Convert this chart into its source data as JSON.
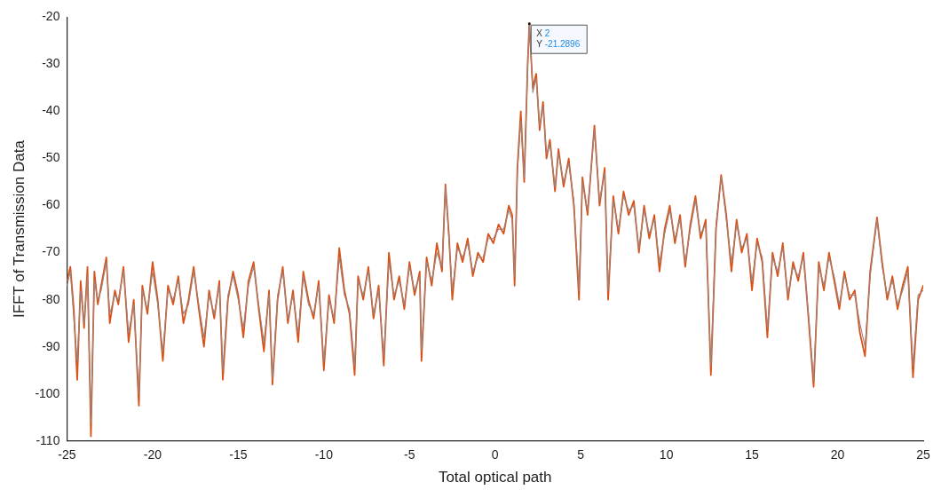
{
  "chart_data": {
    "type": "line",
    "xlabel": "Total optical path",
    "ylabel": "IFFT of Transmission Data",
    "x": [
      -25,
      -24.8,
      -24.6,
      -24.4,
      -24.2,
      -24,
      -23.8,
      -23.6,
      -23.4,
      -23.2,
      -23,
      -22.7,
      -22.5,
      -22.2,
      -22,
      -21.7,
      -21.4,
      -21.1,
      -20.8,
      -20.6,
      -20.3,
      -20,
      -19.7,
      -19.4,
      -19.1,
      -18.8,
      -18.5,
      -18.2,
      -17.9,
      -17.6,
      -17.3,
      -17,
      -16.7,
      -16.4,
      -16.1,
      -15.9,
      -15.6,
      -15.3,
      -15,
      -14.7,
      -14.4,
      -14.1,
      -13.8,
      -13.5,
      -13.2,
      -13,
      -12.7,
      -12.4,
      -12.1,
      -11.8,
      -11.5,
      -11.2,
      -10.9,
      -10.6,
      -10.3,
      -10,
      -9.7,
      -9.4,
      -9.1,
      -8.8,
      -8.5,
      -8.2,
      -8,
      -7.7,
      -7.4,
      -7.1,
      -6.8,
      -6.5,
      -6.2,
      -5.9,
      -5.6,
      -5.3,
      -5,
      -4.7,
      -4.4,
      -4.3,
      -4,
      -3.7,
      -3.4,
      -3.1,
      -2.9,
      -2.7,
      -2.5,
      -2.2,
      -1.9,
      -1.6,
      -1.3,
      -1,
      -0.7,
      -0.4,
      -0.1,
      0.2,
      0.5,
      0.8,
      1,
      1.14,
      1.3,
      1.5,
      1.7,
      1.9,
      2,
      2.2,
      2.4,
      2.6,
      2.8,
      3,
      3.2,
      3.5,
      3.7,
      4,
      4.3,
      4.6,
      4.9,
      5.1,
      5.4,
      5.8,
      6.1,
      6.4,
      6.6,
      6.9,
      7.2,
      7.5,
      7.8,
      8.1,
      8.4,
      8.7,
      9,
      9.3,
      9.6,
      9.9,
      10.2,
      10.5,
      10.8,
      11.1,
      11.4,
      11.7,
      12,
      12.3,
      12.6,
      12.9,
      13.2,
      13.5,
      13.8,
      14.1,
      14.4,
      14.7,
      15,
      15.3,
      15.6,
      15.9,
      16.2,
      16.5,
      16.8,
      17.1,
      17.4,
      17.7,
      18,
      18.3,
      18.6,
      18.9,
      19.2,
      19.5,
      19.8,
      20.1,
      20.4,
      20.7,
      21,
      21.3,
      21.6,
      21.9,
      22.3,
      22.6,
      22.9,
      23.2,
      23.5,
      23.8,
      24.1,
      24.4,
      24.7,
      25
    ],
    "series": [
      {
        "color": "#d95319",
        "values": [
          -76,
          -73,
          -82,
          -97,
          -76,
          -86,
          -73,
          -109,
          -74,
          -81,
          -77,
          -71,
          -85,
          -78,
          -81,
          -73,
          -89,
          -80,
          -102.5,
          -77,
          -83,
          -72,
          -80,
          -93,
          -77,
          -81,
          -75,
          -85,
          -80,
          -73,
          -82,
          -90,
          -78,
          -84,
          -76,
          -97,
          -80,
          -74,
          -79,
          -88,
          -76,
          -72,
          -82,
          -91,
          -78,
          -98,
          -80,
          -73,
          -85,
          -78,
          -89,
          -74,
          -80,
          -84,
          -76,
          -95,
          -79,
          -85,
          -69,
          -78,
          -83,
          -96,
          -75,
          -80,
          -73,
          -84,
          -77,
          -94,
          -70,
          -80,
          -75,
          -82,
          -72,
          -79,
          -74,
          -93,
          -71,
          -77,
          -68,
          -74,
          -55.5,
          -66,
          -80,
          -68,
          -72,
          -67,
          -75,
          -70,
          -72,
          -66,
          -68,
          -64,
          -66,
          -60,
          -62,
          -77,
          -52,
          -40,
          -55,
          -30,
          -21.2896,
          -35,
          -32,
          -44,
          -38,
          -50,
          -46,
          -57,
          -48,
          -56,
          -50,
          -60,
          -80,
          -54,
          -62,
          -43,
          -60,
          -52,
          -80,
          -58,
          -66,
          -57,
          -62,
          -59,
          -70,
          -60,
          -67,
          -62,
          -74,
          -65,
          -60,
          -68,
          -62,
          -73,
          -64,
          -58,
          -67,
          -63,
          -96,
          -65,
          -53.5,
          -62,
          -74,
          -63,
          -70,
          -66,
          -78,
          -67,
          -72,
          -88,
          -70,
          -75,
          -68,
          -80,
          -72,
          -76,
          -70,
          -84,
          -98.5,
          -72,
          -78,
          -70,
          -76,
          -82,
          -74,
          -80,
          -78,
          -87,
          -92,
          -74,
          -62.5,
          -72,
          -80,
          -75,
          -82,
          -77,
          -73,
          -96.5,
          -80,
          -77
        ]
      },
      {
        "color": "#9c8580",
        "values": [
          -77,
          -74,
          -84,
          -93,
          -78,
          -85,
          -75,
          -106,
          -76,
          -80,
          -78,
          -72,
          -83,
          -79,
          -80,
          -74,
          -87,
          -81,
          -100,
          -78,
          -82,
          -74,
          -81,
          -91,
          -78,
          -80,
          -76,
          -83,
          -81,
          -74,
          -81,
          -88,
          -79,
          -83,
          -77,
          -95,
          -79,
          -75,
          -80,
          -86,
          -77,
          -73,
          -81,
          -89,
          -79,
          -97,
          -79,
          -74,
          -84,
          -79,
          -87,
          -75,
          -81,
          -83,
          -77,
          -93,
          -80,
          -84,
          -71,
          -79,
          -82,
          -94,
          -76,
          -79,
          -74,
          -83,
          -78,
          -92,
          -72,
          -79,
          -76,
          -81,
          -73,
          -78,
          -75,
          -91,
          -72,
          -76,
          -70,
          -73,
          -56,
          -67,
          -78,
          -69,
          -71,
          -68,
          -74,
          -71,
          -71,
          -67,
          -67,
          -65,
          -65,
          -61,
          -63,
          -75,
          -53,
          -42,
          -54,
          -31,
          -21.2896,
          -36,
          -33,
          -43,
          -39,
          -49,
          -47,
          -56,
          -49,
          -55,
          -51,
          -59,
          -78,
          -55,
          -61,
          -44,
          -59,
          -53,
          -78,
          -59,
          -65,
          -58,
          -61,
          -60,
          -69,
          -61,
          -66,
          -63,
          -72,
          -66,
          -61,
          -67,
          -63,
          -72,
          -65,
          -59,
          -66,
          -64,
          -94,
          -64,
          -54,
          -63,
          -72,
          -64,
          -69,
          -67,
          -76,
          -68,
          -71,
          -86,
          -71,
          -74,
          -69,
          -79,
          -73,
          -75,
          -71,
          -83,
          -97,
          -73,
          -77,
          -71,
          -75,
          -81,
          -75,
          -79,
          -79,
          -85,
          -90,
          -75,
          -63,
          -73,
          -79,
          -76,
          -81,
          -78,
          -74,
          -94,
          -79,
          -78
        ]
      }
    ],
    "xlim": [
      -25,
      25
    ],
    "xticks": [
      -25,
      -20,
      -15,
      -10,
      -5,
      0,
      5,
      10,
      15,
      20,
      25
    ],
    "ylim": [
      -110,
      -20
    ],
    "yticks": [
      -110,
      -100,
      -90,
      -80,
      -70,
      -60,
      -50,
      -40,
      -30,
      -20
    ],
    "annotations": [
      {
        "text": "X 2\nY -21.2896",
        "x": 2,
        "y": -21.2896
      }
    ]
  }
}
